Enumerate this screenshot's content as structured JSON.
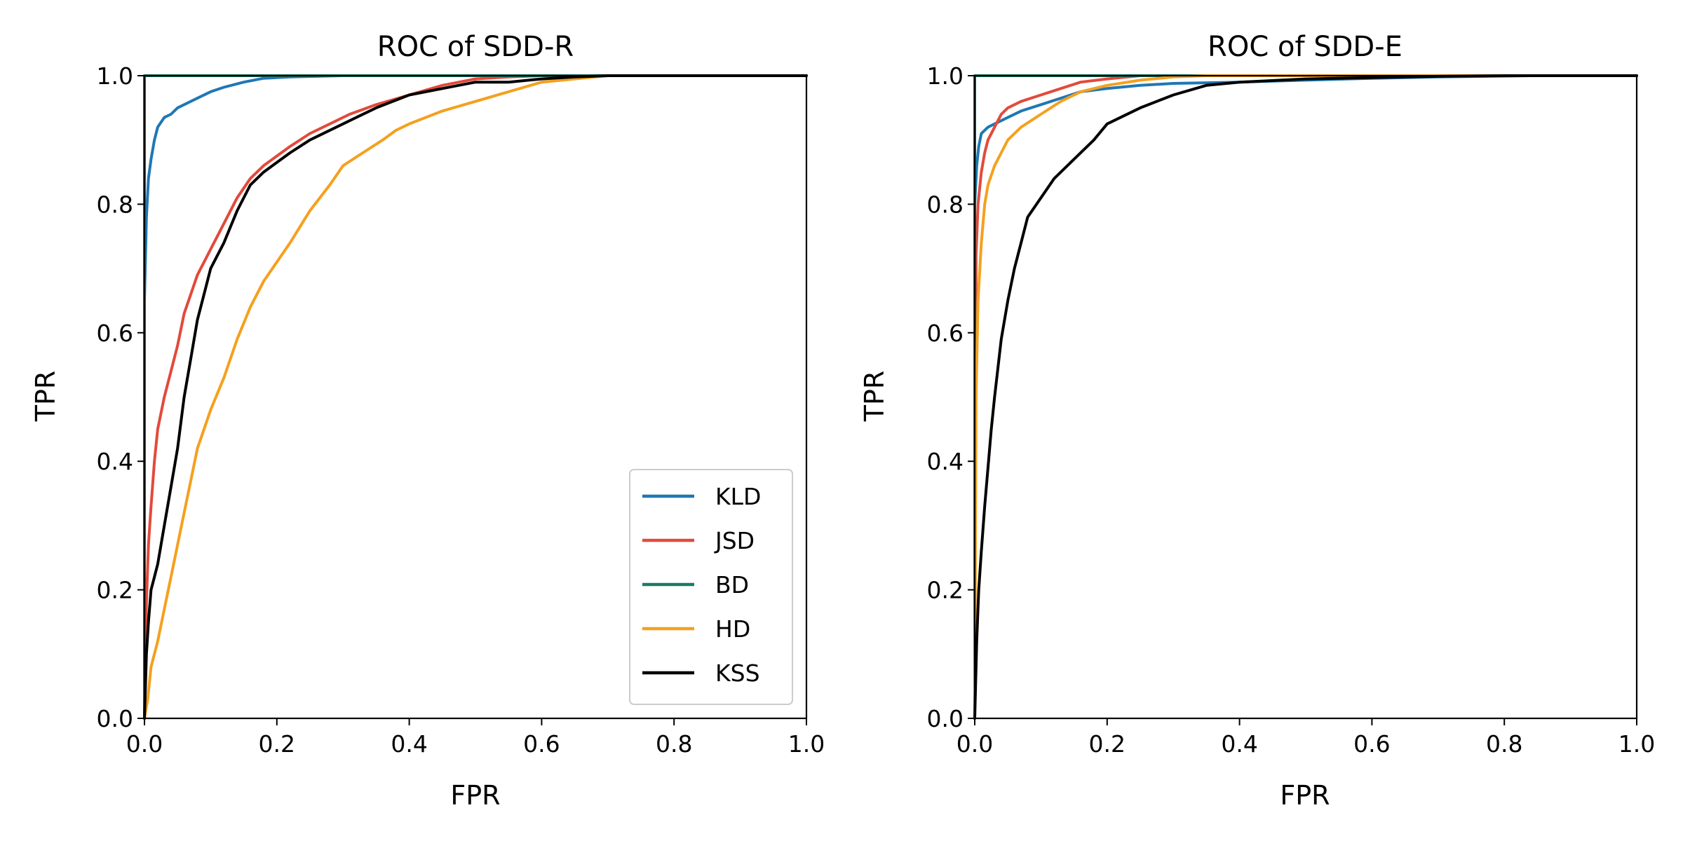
{
  "chart_data": [
    {
      "type": "line",
      "title": "ROC of SDD-R",
      "xlabel": "FPR",
      "ylabel": "TPR",
      "xlim": [
        0,
        1
      ],
      "ylim": [
        0,
        1
      ],
      "xticks": [
        "0.0",
        "0.2",
        "0.4",
        "0.6",
        "0.8",
        "1.0"
      ],
      "yticks": [
        "0.0",
        "0.2",
        "0.4",
        "0.6",
        "0.8",
        "1.0"
      ],
      "grid": false,
      "legend": "lower-right",
      "series": [
        {
          "name": "KLD",
          "color": "#1f77b4",
          "x": [
            0,
            0,
            0.003,
            0.006,
            0.01,
            0.015,
            0.02,
            0.03,
            0.04,
            0.05,
            0.06,
            0.08,
            0.1,
            0.12,
            0.15,
            0.18,
            0.22,
            0.3,
            1.0
          ],
          "y": [
            0,
            0.65,
            0.78,
            0.84,
            0.87,
            0.9,
            0.92,
            0.935,
            0.94,
            0.95,
            0.955,
            0.965,
            0.975,
            0.982,
            0.99,
            0.996,
            0.998,
            1.0,
            1.0
          ]
        },
        {
          "name": "JSD",
          "color": "#e24a3b",
          "x": [
            0,
            0.003,
            0.006,
            0.01,
            0.015,
            0.02,
            0.03,
            0.04,
            0.05,
            0.06,
            0.07,
            0.08,
            0.09,
            0.1,
            0.12,
            0.14,
            0.16,
            0.18,
            0.2,
            0.22,
            0.25,
            0.28,
            0.31,
            0.35,
            0.4,
            0.45,
            0.5,
            0.55,
            0.6,
            1.0
          ],
          "y": [
            0,
            0.18,
            0.27,
            0.33,
            0.4,
            0.45,
            0.5,
            0.54,
            0.58,
            0.63,
            0.66,
            0.69,
            0.71,
            0.73,
            0.77,
            0.81,
            0.84,
            0.86,
            0.875,
            0.89,
            0.91,
            0.925,
            0.94,
            0.955,
            0.97,
            0.985,
            0.995,
            0.998,
            1.0,
            1.0
          ]
        },
        {
          "name": "BD",
          "color": "#1b7a66",
          "x": [
            0,
            0,
            1.0
          ],
          "y": [
            0,
            1.0,
            1.0
          ]
        },
        {
          "name": "HD",
          "color": "#f5a01e",
          "x": [
            0,
            0.005,
            0.01,
            0.02,
            0.03,
            0.04,
            0.05,
            0.06,
            0.07,
            0.08,
            0.09,
            0.1,
            0.12,
            0.14,
            0.16,
            0.18,
            0.2,
            0.22,
            0.25,
            0.28,
            0.3,
            0.33,
            0.36,
            0.38,
            0.4,
            0.45,
            0.5,
            0.55,
            0.6,
            0.65,
            0.7,
            1.0
          ],
          "y": [
            0,
            0.03,
            0.08,
            0.12,
            0.17,
            0.22,
            0.27,
            0.32,
            0.37,
            0.42,
            0.45,
            0.48,
            0.53,
            0.59,
            0.64,
            0.68,
            0.71,
            0.74,
            0.79,
            0.83,
            0.86,
            0.88,
            0.9,
            0.915,
            0.925,
            0.945,
            0.96,
            0.975,
            0.99,
            0.995,
            1.0,
            1.0
          ]
        },
        {
          "name": "KSS",
          "color": "#000000",
          "x": [
            0,
            0.003,
            0.006,
            0.01,
            0.015,
            0.02,
            0.03,
            0.04,
            0.05,
            0.06,
            0.07,
            0.08,
            0.09,
            0.1,
            0.12,
            0.14,
            0.16,
            0.18,
            0.2,
            0.22,
            0.25,
            0.28,
            0.31,
            0.35,
            0.4,
            0.45,
            0.5,
            0.55,
            0.6,
            0.65,
            0.7,
            0.8,
            1.0
          ],
          "y": [
            0,
            0.1,
            0.15,
            0.2,
            0.22,
            0.24,
            0.3,
            0.36,
            0.42,
            0.5,
            0.56,
            0.62,
            0.66,
            0.7,
            0.74,
            0.79,
            0.83,
            0.85,
            0.865,
            0.88,
            0.9,
            0.915,
            0.93,
            0.95,
            0.97,
            0.98,
            0.99,
            0.99,
            0.995,
            0.998,
            1.0,
            1.0,
            1.0
          ]
        }
      ]
    },
    {
      "type": "line",
      "title": "ROC of SDD-E",
      "xlabel": "FPR",
      "ylabel": "TPR",
      "xlim": [
        0,
        1
      ],
      "ylim": [
        0,
        1
      ],
      "xticks": [
        "0.0",
        "0.2",
        "0.4",
        "0.6",
        "0.8",
        "1.0"
      ],
      "yticks": [
        "0.0",
        "0.2",
        "0.4",
        "0.6",
        "0.8",
        "1.0"
      ],
      "grid": false,
      "series": [
        {
          "name": "KLD",
          "color": "#1f77b4",
          "x": [
            0,
            0,
            0.003,
            0.006,
            0.01,
            0.015,
            0.02,
            0.03,
            0.05,
            0.07,
            0.1,
            0.13,
            0.16,
            0.2,
            0.25,
            0.3,
            0.4,
            0.5,
            0.6,
            0.7,
            0.84,
            1.0
          ],
          "y": [
            0,
            0.8,
            0.86,
            0.89,
            0.91,
            0.915,
            0.92,
            0.925,
            0.935,
            0.945,
            0.955,
            0.965,
            0.975,
            0.98,
            0.985,
            0.988,
            0.99,
            0.993,
            0.996,
            0.998,
            1.0,
            1.0
          ]
        },
        {
          "name": "JSD",
          "color": "#e24a3b",
          "x": [
            0,
            0.002,
            0.005,
            0.01,
            0.015,
            0.02,
            0.03,
            0.04,
            0.05,
            0.07,
            0.1,
            0.13,
            0.16,
            0.2,
            0.25,
            0.3,
            1.0
          ],
          "y": [
            0,
            0.72,
            0.8,
            0.85,
            0.88,
            0.9,
            0.92,
            0.94,
            0.95,
            0.96,
            0.97,
            0.98,
            0.99,
            0.995,
            1.0,
            1.0,
            1.0
          ]
        },
        {
          "name": "BD",
          "color": "#1b7a66",
          "x": [
            0,
            0,
            1.0
          ],
          "y": [
            0,
            1.0,
            1.0
          ]
        },
        {
          "name": "HD",
          "color": "#f5a01e",
          "x": [
            0,
            0.002,
            0.005,
            0.01,
            0.015,
            0.02,
            0.03,
            0.04,
            0.05,
            0.07,
            0.1,
            0.13,
            0.16,
            0.2,
            0.25,
            0.3,
            0.35,
            1.0
          ],
          "y": [
            0,
            0.5,
            0.65,
            0.74,
            0.8,
            0.83,
            0.86,
            0.88,
            0.9,
            0.92,
            0.94,
            0.96,
            0.975,
            0.985,
            0.993,
            0.998,
            1.0,
            1.0
          ]
        },
        {
          "name": "KSS",
          "color": "#000000",
          "x": [
            0,
            0.003,
            0.006,
            0.01,
            0.015,
            0.02,
            0.025,
            0.03,
            0.04,
            0.05,
            0.06,
            0.07,
            0.08,
            0.1,
            0.12,
            0.15,
            0.18,
            0.2,
            0.25,
            0.3,
            0.35,
            0.4,
            0.5,
            0.6,
            0.7,
            0.8,
            1.0
          ],
          "y": [
            0,
            0.12,
            0.2,
            0.26,
            0.33,
            0.39,
            0.45,
            0.5,
            0.59,
            0.65,
            0.7,
            0.74,
            0.78,
            0.81,
            0.84,
            0.87,
            0.9,
            0.925,
            0.95,
            0.97,
            0.985,
            0.99,
            0.995,
            0.997,
            0.999,
            1.0,
            1.0
          ]
        }
      ]
    }
  ]
}
